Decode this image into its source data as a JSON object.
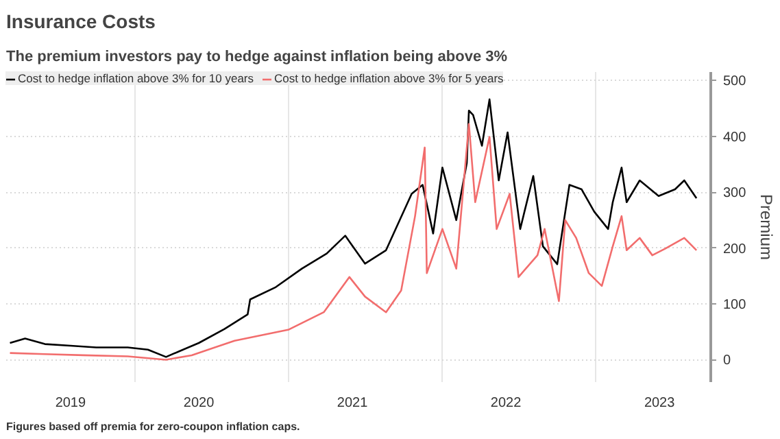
{
  "chart_data": {
    "type": "line",
    "title": "Insurance Costs",
    "subtitle": "The premium investors pay to hedge against inflation being above 3%",
    "ylabel": "Premium",
    "annotations": [
      "Figures based off premia for zero-coupon inflation caps."
    ],
    "xlim": [
      "2019-03-01",
      "2023-10-01"
    ],
    "xticks": [
      {
        "value": "2019-08-01",
        "label": "2019"
      },
      {
        "value": "2020-01-01",
        "label": null
      },
      {
        "value": "2020-06-01",
        "label": "2020"
      },
      {
        "value": "2021-01-01",
        "label": null
      },
      {
        "value": "2021-06-01",
        "label": "2021"
      },
      {
        "value": "2022-01-01",
        "label": null
      },
      {
        "value": "2022-06-01",
        "label": "2022"
      },
      {
        "value": "2023-01-01",
        "label": null
      },
      {
        "value": "2023-06-01",
        "label": "2023"
      }
    ],
    "ylim": [
      -40,
      515
    ],
    "yticks": [
      0,
      100,
      200,
      300,
      400,
      500
    ],
    "grid": true,
    "legend": "top left",
    "series": [
      {
        "name": "Cost to hedge inflation above 3% for 10 years",
        "color": "#000000",
        "x": [
          "2019-03-10",
          "2019-04-15",
          "2019-06-01",
          "2019-08-01",
          "2019-10-01",
          "2019-12-15",
          "2020-02-01",
          "2020-03-15",
          "2020-04-15",
          "2020-06-01",
          "2020-08-01",
          "2020-09-25",
          "2020-10-01",
          "2020-12-01",
          "2021-02-01",
          "2021-04-01",
          "2021-05-15",
          "2021-07-01",
          "2021-08-20",
          "2021-10-20",
          "2021-11-15",
          "2021-12-10",
          "2022-01-01",
          "2022-02-03",
          "2022-02-28",
          "2022-03-05",
          "2022-03-15",
          "2022-04-05",
          "2022-04-23",
          "2022-05-15",
          "2022-06-05",
          "2022-07-05",
          "2022-08-05",
          "2022-08-28",
          "2022-10-01",
          "2022-10-30",
          "2022-11-28",
          "2022-12-28",
          "2023-01-30",
          "2023-02-10",
          "2023-03-03",
          "2023-03-15",
          "2023-04-15",
          "2023-05-30",
          "2023-07-08",
          "2023-07-30",
          "2023-08-28"
        ],
        "values": [
          30,
          38,
          28,
          25,
          22,
          22,
          18,
          5,
          15,
          30,
          55,
          81,
          108,
          130,
          163,
          190,
          222,
          172,
          196,
          297,
          313,
          226,
          344,
          250,
          352,
          446,
          438,
          383,
          466,
          321,
          407,
          234,
          329,
          203,
          171,
          313,
          305,
          265,
          234,
          282,
          344,
          282,
          321,
          293,
          305,
          321,
          289
        ]
      },
      {
        "name": "Cost to hedge inflation above 3% for 5 years",
        "color": "#f26d6d",
        "x": [
          "2019-03-10",
          "2019-06-01",
          "2019-09-01",
          "2019-12-15",
          "2020-03-15",
          "2020-05-15",
          "2020-08-25",
          "2021-01-01",
          "2021-03-25",
          "2021-05-25",
          "2021-07-01",
          "2021-08-20",
          "2021-09-25",
          "2021-10-28",
          "2021-11-20",
          "2021-11-25",
          "2022-01-01",
          "2022-02-03",
          "2022-03-05",
          "2022-03-20",
          "2022-04-23",
          "2022-05-10",
          "2022-06-10",
          "2022-07-01",
          "2022-08-15",
          "2022-09-01",
          "2022-10-05",
          "2022-10-20",
          "2022-11-15",
          "2022-12-15",
          "2023-01-15",
          "2023-02-10",
          "2023-03-03",
          "2023-03-15",
          "2023-04-15",
          "2023-05-15",
          "2023-06-15",
          "2023-07-30",
          "2023-08-28"
        ],
        "values": [
          12,
          10,
          8,
          6,
          0,
          8,
          34,
          54,
          85,
          148,
          113,
          85,
          124,
          257,
          380,
          155,
          234,
          163,
          422,
          282,
          399,
          234,
          297,
          148,
          187,
          234,
          105,
          250,
          218,
          155,
          132,
          203,
          257,
          196,
          218,
          187,
          199,
          218,
          196
        ]
      }
    ]
  }
}
